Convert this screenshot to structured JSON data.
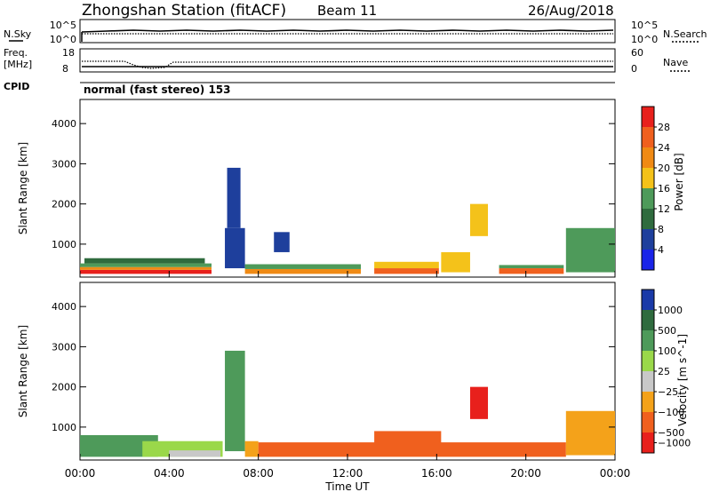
{
  "header": {
    "title": "Zhongshan Station (fitACF)",
    "beam": "Beam 11",
    "date": "26/Aug/2018"
  },
  "top_panel": {
    "left_label": "N.Sky",
    "left_ticks": [
      "10^5",
      "10^0"
    ],
    "right_label": "N.Search",
    "right_ticks": [
      "10^5",
      "10^0"
    ]
  },
  "freq_panel": {
    "label": "Freq.",
    "unit": "[MHz]",
    "left_ticks": [
      "18",
      "8"
    ],
    "right_ticks": [
      "60",
      "0"
    ],
    "right_label": "Nave"
  },
  "cpid": {
    "label": "CPID",
    "text": "normal (fast stereo) 153"
  },
  "colors": {
    "power": [
      "#1a24e8",
      "#1e3f9c",
      "#2f6b3e",
      "#4e9a5a",
      "#f4c21a",
      "#f08a14",
      "#f0601e",
      "#e8201c"
    ],
    "velocity": [
      "#e8201c",
      "#f0601e",
      "#f4a21a",
      "#c8c8c8",
      "#9ad84a",
      "#4e9a5a",
      "#2f6b3e",
      "#1a3aa8"
    ]
  },
  "chart_data": [
    {
      "type": "heatmap",
      "title": "",
      "xlabel": "",
      "ylabel": "Slant Range [km]",
      "x_ticks": [
        "00:00",
        "04:00",
        "08:00",
        "12:00",
        "16:00",
        "20:00",
        "00:00"
      ],
      "y_ticks": [
        1000,
        2000,
        3000,
        4000
      ],
      "ylim": [
        180,
        4600
      ],
      "colorbar": {
        "label": "Power [dB]",
        "ticks": [
          "4",
          "8",
          "12",
          "16",
          "20",
          "24",
          "28"
        ]
      },
      "regions": [
        {
          "t0": 0.0,
          "t1": 5.9,
          "r0": 260,
          "r1": 360,
          "value": 28
        },
        {
          "t0": 0.0,
          "t1": 5.9,
          "r0": 360,
          "r1": 430,
          "value": 22
        },
        {
          "t0": 0.0,
          "t1": 5.9,
          "r0": 430,
          "r1": 520,
          "value": 14
        },
        {
          "t0": 0.2,
          "t1": 5.6,
          "r0": 520,
          "r1": 650,
          "value": 8
        },
        {
          "t0": 6.5,
          "t1": 7.4,
          "r0": 400,
          "r1": 1400,
          "value": 6
        },
        {
          "t0": 6.6,
          "t1": 7.2,
          "r0": 1400,
          "r1": 2900,
          "value": 5
        },
        {
          "t0": 7.4,
          "t1": 12.6,
          "r0": 260,
          "r1": 380,
          "value": 22
        },
        {
          "t0": 7.4,
          "t1": 12.6,
          "r0": 380,
          "r1": 500,
          "value": 12
        },
        {
          "t0": 8.7,
          "t1": 9.4,
          "r0": 800,
          "r1": 1300,
          "value": 7
        },
        {
          "t0": 13.2,
          "t1": 16.1,
          "r0": 260,
          "r1": 400,
          "value": 26
        },
        {
          "t0": 13.2,
          "t1": 16.1,
          "r0": 400,
          "r1": 560,
          "value": 16
        },
        {
          "t0": 16.2,
          "t1": 17.5,
          "r0": 300,
          "r1": 800,
          "value": 17
        },
        {
          "t0": 17.5,
          "t1": 18.3,
          "r0": 1200,
          "r1": 2000,
          "value": 19
        },
        {
          "t0": 18.8,
          "t1": 21.7,
          "r0": 260,
          "r1": 400,
          "value": 27
        },
        {
          "t0": 18.8,
          "t1": 21.7,
          "r0": 400,
          "r1": 480,
          "value": 15
        },
        {
          "t0": 21.8,
          "t1": 24.0,
          "r0": 300,
          "r1": 1400,
          "value": 12
        }
      ]
    },
    {
      "type": "heatmap",
      "title": "",
      "xlabel": "Time UT",
      "ylabel": "Slant Range [km]",
      "x_ticks": [
        "00:00",
        "04:00",
        "08:00",
        "12:00",
        "16:00",
        "20:00",
        "00:00"
      ],
      "y_ticks": [
        1000,
        2000,
        3000,
        4000
      ],
      "ylim": [
        180,
        4600
      ],
      "colorbar": {
        "label": "Velocity [m s^-1]",
        "ticks": [
          "1000",
          "500",
          "100",
          "25",
          "−25",
          "−100",
          "−500",
          "−1000"
        ]
      },
      "regions": [
        {
          "t0": 0.0,
          "t1": 3.5,
          "r0": 260,
          "r1": 800,
          "value": 300
        },
        {
          "t0": 2.8,
          "t1": 6.4,
          "r0": 260,
          "r1": 650,
          "value": 60
        },
        {
          "t0": 4.0,
          "t1": 6.3,
          "r0": 260,
          "r1": 420,
          "value": 10
        },
        {
          "t0": 6.5,
          "t1": 7.4,
          "r0": 400,
          "r1": 2900,
          "value": 300
        },
        {
          "t0": 7.4,
          "t1": 8.0,
          "r0": 260,
          "r1": 650,
          "value": -60
        },
        {
          "t0": 8.0,
          "t1": 21.8,
          "r0": 260,
          "r1": 620,
          "value": -300
        },
        {
          "t0": 13.2,
          "t1": 16.2,
          "r0": 500,
          "r1": 900,
          "value": -300
        },
        {
          "t0": 17.5,
          "t1": 18.3,
          "r0": 1200,
          "r1": 2000,
          "value": -700
        },
        {
          "t0": 21.8,
          "t1": 24.0,
          "r0": 300,
          "r1": 1400,
          "value": -60
        }
      ]
    }
  ]
}
